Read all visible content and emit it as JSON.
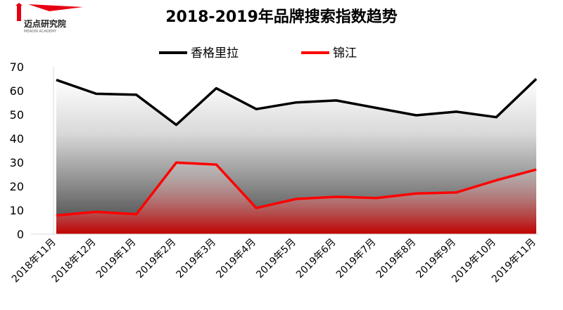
{
  "logo": {
    "text": "迈点研究院",
    "subtext": "MEADIN ACADEMY"
  },
  "chart_data": {
    "type": "area",
    "title": "2018-2019年品牌搜索指数趋势",
    "xlabel": "",
    "ylabel": "",
    "categories": [
      "2018年11月",
      "2018年12月",
      "2019年1月",
      "2019年2月",
      "2019年3月",
      "2019年4月",
      "2019年5月",
      "2019年6月",
      "2019年7月",
      "2019年8月",
      "2019年9月",
      "2019年10月",
      "2019年11月"
    ],
    "series": [
      {
        "name": "香格里拉",
        "values": [
          64.5,
          58.7,
          58.3,
          45.7,
          61.0,
          52.3,
          55.1,
          55.9,
          52.8,
          49.7,
          51.2,
          48.9,
          64.9
        ],
        "color": "#000000"
      },
      {
        "name": "锦江",
        "values": [
          7.8,
          9.3,
          8.3,
          29.9,
          29.1,
          10.9,
          14.7,
          15.6,
          15.1,
          17.0,
          17.4,
          22.5,
          27.0
        ],
        "color": "#ff0000"
      }
    ],
    "ylim": [
      0,
      70
    ],
    "yticks": [
      0,
      10,
      20,
      30,
      40,
      50,
      60,
      70
    ],
    "grid": false,
    "legend": "top-center"
  }
}
